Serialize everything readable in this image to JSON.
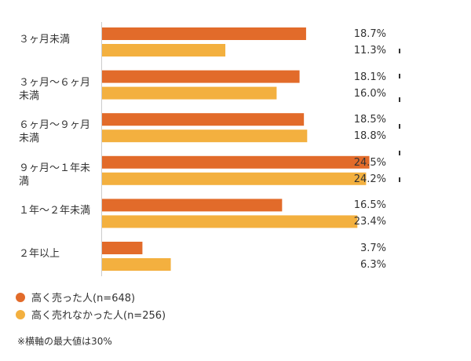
{
  "chart_data": {
    "type": "bar",
    "orientation": "horizontal",
    "categories": [
      "３ヶ月未満",
      "３ヶ月〜６ヶ月未満",
      "６ヶ月〜９ヶ月未満",
      "９ヶ月〜１年未満",
      "１年〜２年未満",
      "２年以上"
    ],
    "series": [
      {
        "name": "高く売った人(n=648)",
        "color": "#e26b2a",
        "values": [
          18.7,
          18.1,
          18.5,
          24.5,
          16.5,
          3.7
        ]
      },
      {
        "name": "高く売れなかった人(n=256)",
        "color": "#f3b03f",
        "values": [
          11.3,
          16.0,
          18.8,
          24.2,
          23.4,
          6.3
        ]
      }
    ],
    "value_labels": [
      [
        "18.7%",
        "11.3%"
      ],
      [
        "18.1%",
        "16.0%"
      ],
      [
        "18.5%",
        "18.8%"
      ],
      [
        "24.5%",
        "24.2%"
      ],
      [
        "16.5%",
        "23.4%"
      ],
      [
        "3.7%",
        "6.3%"
      ]
    ],
    "xlim": [
      0,
      30
    ],
    "grid": false,
    "legend_position": "bottom-left"
  },
  "legend": {
    "items": [
      {
        "label": "高く売った人(n=648)",
        "color": "#e26b2a"
      },
      {
        "label": "高く売れなかった人(n=256)",
        "color": "#f3b03f"
      }
    ]
  },
  "note": "※横軸の最大値は30%"
}
